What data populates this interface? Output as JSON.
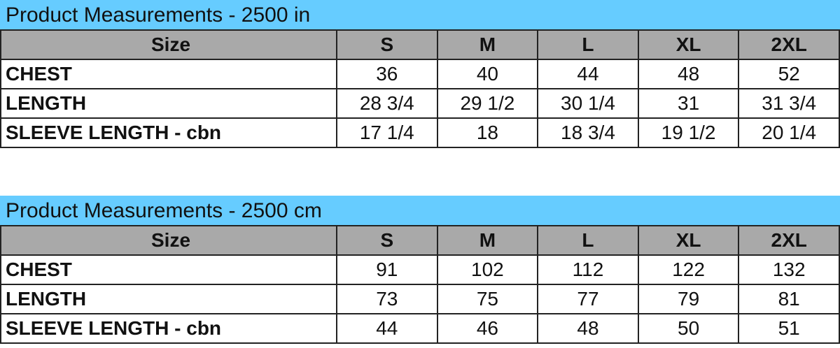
{
  "tables": [
    {
      "title": "Product Measurements - 2500 in",
      "header": [
        "Size",
        "S",
        "M",
        "L",
        "XL",
        "2XL"
      ],
      "rows": [
        [
          "CHEST",
          "36",
          "40",
          "44",
          "48",
          "52"
        ],
        [
          "LENGTH",
          "28 3/4",
          "29 1/2",
          "30 1/4",
          "31",
          "31 3/4"
        ],
        [
          "SLEEVE LENGTH - cbn",
          "17 1/4",
          "18",
          "18 3/4",
          "19 1/2",
          "20 1/4"
        ]
      ]
    },
    {
      "title": "Product Measurements - 2500 cm",
      "header": [
        "Size",
        "S",
        "M",
        "L",
        "XL",
        "2XL"
      ],
      "rows": [
        [
          "CHEST",
          "91",
          "102",
          "112",
          "122",
          "132"
        ],
        [
          "LENGTH",
          "73",
          "75",
          "77",
          "79",
          "81"
        ],
        [
          "SLEEVE LENGTH - cbn",
          "44",
          "46",
          "48",
          "50",
          "51"
        ]
      ]
    }
  ],
  "colors": {
    "title_bg": "#66ccff",
    "header_bg": "#a9a9a9"
  }
}
